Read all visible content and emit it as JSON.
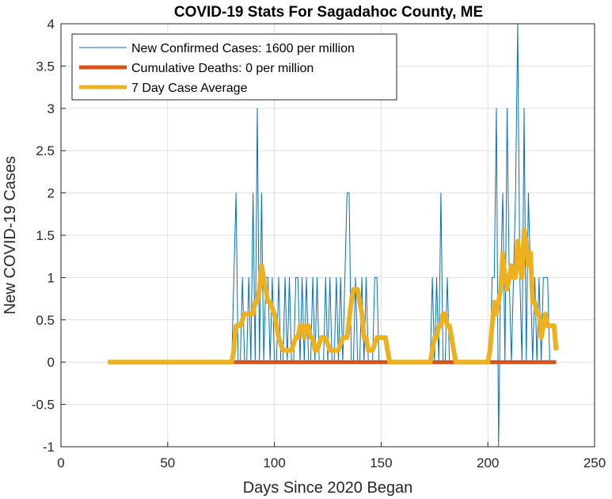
{
  "chart_data": {
    "type": "line",
    "title": "COVID-19 Stats For Sagadahoc County, ME",
    "xlabel": "Days Since 2020 Began",
    "ylabel": "New COVID-19 Cases",
    "xlim": [
      0,
      250
    ],
    "ylim": [
      -1,
      4
    ],
    "grid": true,
    "legend_position": "top-left",
    "xticks": [
      0,
      50,
      100,
      150,
      200,
      250
    ],
    "yticks": [
      4,
      3.5,
      3,
      2.5,
      2,
      1.5,
      1,
      0.5,
      0,
      -0.5,
      -1
    ],
    "xtick_labels": [
      "0",
      "50",
      "100",
      "150",
      "200",
      "250"
    ],
    "ytick_labels": [
      "4",
      "3.5",
      "3",
      "2.5",
      "2",
      "1.5",
      "1",
      "0.5",
      "0",
      "-0.5",
      "-1"
    ],
    "series": [
      {
        "name": "New Confirmed Cases: 1600 per million",
        "color": "#0072BD",
        "x": [
          22,
          80,
          81,
          82,
          83,
          84,
          85,
          86,
          87,
          88,
          89,
          90,
          91,
          92,
          93,
          94,
          95,
          96,
          97,
          98,
          99,
          100,
          101,
          102,
          103,
          104,
          105,
          106,
          107,
          108,
          109,
          110,
          111,
          112,
          113,
          114,
          115,
          116,
          117,
          118,
          119,
          120,
          121,
          122,
          123,
          124,
          125,
          126,
          127,
          128,
          129,
          130,
          131,
          132,
          133,
          134,
          135,
          136,
          137,
          138,
          139,
          140,
          141,
          142,
          143,
          144,
          145,
          146,
          147,
          148,
          149,
          150,
          151,
          152,
          153,
          154,
          155,
          156,
          157,
          158,
          159,
          160,
          161,
          162,
          163,
          164,
          165,
          166,
          167,
          168,
          169,
          170,
          171,
          172,
          173,
          174,
          175,
          176,
          177,
          178,
          179,
          180,
          181,
          182,
          183,
          184,
          185,
          186,
          187,
          188,
          189,
          190,
          191,
          192,
          193,
          194,
          195,
          196,
          197,
          198,
          199,
          200,
          201,
          202,
          203,
          204,
          205,
          206,
          207,
          208,
          209,
          210,
          211,
          212,
          213,
          214,
          215,
          216,
          217,
          218,
          219,
          220,
          221,
          222,
          223,
          224,
          225,
          226,
          227,
          228,
          229,
          230,
          231,
          232
        ],
        "values": [
          0,
          0,
          1,
          2,
          0,
          0,
          1,
          0,
          0,
          1,
          0,
          2,
          0,
          3,
          0,
          2,
          0,
          1,
          1,
          0,
          1,
          0,
          0,
          1,
          0,
          0,
          1,
          0,
          1,
          0,
          0,
          1,
          1,
          0,
          1,
          0,
          1,
          0,
          0,
          1,
          0,
          1,
          0,
          0,
          0,
          1,
          0,
          1,
          0,
          0,
          1,
          0,
          1,
          0,
          1,
          2,
          2,
          0,
          0,
          1,
          0,
          0,
          1,
          0,
          1,
          0,
          0,
          0,
          1,
          1,
          0,
          0,
          0,
          0,
          0,
          0,
          0,
          0,
          0,
          0,
          0,
          0,
          0,
          0,
          0,
          0,
          0,
          0,
          0,
          0,
          0,
          0,
          0,
          0,
          0,
          1,
          0,
          1,
          0,
          2,
          0,
          0,
          1,
          0,
          0,
          0,
          0,
          0,
          0,
          0,
          0,
          0,
          0,
          0,
          0,
          0,
          0,
          0,
          0,
          0,
          0,
          0,
          0,
          1,
          1,
          3,
          -1,
          1,
          2,
          0,
          3,
          1,
          0,
          1,
          2,
          4,
          1,
          0,
          3,
          0,
          2,
          1,
          0,
          1,
          0,
          1,
          0,
          1,
          1,
          1,
          0,
          0,
          0,
          0
        ],
        "legend_label": "New Confirmed Cases: 1600 per million"
      },
      {
        "name": "Cumulative Deaths: 0 per million",
        "color": "#D95319",
        "x": [
          80,
          232
        ],
        "values": [
          0,
          0
        ],
        "legend_label": "Cumulative Deaths: 0 per million"
      },
      {
        "name": "7 Day Case Average",
        "color": "#EDB120",
        "x": [
          22,
          80,
          81,
          82,
          84,
          86,
          88,
          90,
          91,
          92,
          93,
          94,
          95,
          96,
          97,
          98,
          100,
          102,
          104,
          106,
          108,
          110,
          111,
          112,
          113,
          114,
          115,
          116,
          117,
          118,
          119,
          120,
          122,
          124,
          126,
          128,
          130,
          132,
          134,
          136,
          137,
          138,
          139,
          140,
          141,
          142,
          143,
          144,
          145,
          146,
          148,
          150,
          152,
          153,
          154,
          155,
          156,
          160,
          165,
          170,
          172,
          173,
          174,
          175,
          176,
          177,
          178,
          179,
          180,
          181,
          182,
          183,
          184,
          185,
          188,
          192,
          196,
          200,
          201,
          202,
          203,
          204,
          205,
          206,
          207,
          208,
          209,
          210,
          211,
          212,
          213,
          214,
          215,
          216,
          217,
          218,
          219,
          220,
          221,
          222,
          223,
          224,
          225,
          226,
          227,
          228,
          229,
          230,
          231,
          232
        ],
        "values": [
          0,
          0,
          0.14,
          0.43,
          0.43,
          0.57,
          0.57,
          0.57,
          0.71,
          0.71,
          0.86,
          1.14,
          1.0,
          0.86,
          0.71,
          0.71,
          0.57,
          0.29,
          0.14,
          0.14,
          0.14,
          0.29,
          0.29,
          0.43,
          0.43,
          0.29,
          0.43,
          0.43,
          0.29,
          0.29,
          0.14,
          0.14,
          0.29,
          0.29,
          0.14,
          0.14,
          0.14,
          0.29,
          0.29,
          0.71,
          0.86,
          0.86,
          0.86,
          0.71,
          0.57,
          0.29,
          0.29,
          0.14,
          0.14,
          0.14,
          0.29,
          0.29,
          0.29,
          0.14,
          0.0,
          0.0,
          0.0,
          0.0,
          0.0,
          0.0,
          0.0,
          0.0,
          0.14,
          0.29,
          0.29,
          0.43,
          0.43,
          0.57,
          0.57,
          0.43,
          0.43,
          0.29,
          0.14,
          0.0,
          0.0,
          0.0,
          0.0,
          0.0,
          0.14,
          0.43,
          0.71,
          0.57,
          0.71,
          0.86,
          1.29,
          1.0,
          0.86,
          1.0,
          1.14,
          1.0,
          1.0,
          1.43,
          1.14,
          1.0,
          1.57,
          1.43,
          1.14,
          1.29,
          0.71,
          0.71,
          0.57,
          0.57,
          0.29,
          0.43,
          0.57,
          0.43,
          0.43,
          0.43,
          0.43,
          0.14
        ],
        "legend_label": "7 Day Case Average"
      }
    ]
  }
}
